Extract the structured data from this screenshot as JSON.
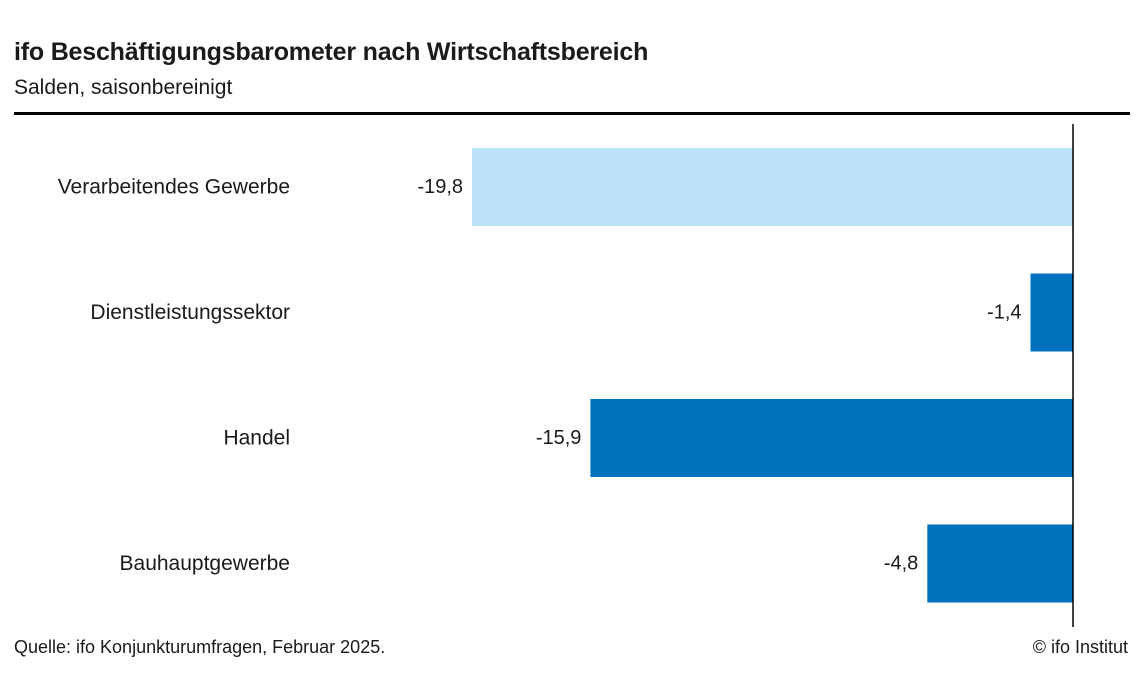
{
  "header": {
    "title": "ifo Beschäftigungsbarometer nach Wirtschaftsbereich",
    "subtitle": "Salden, saisonbereinigt"
  },
  "footer": {
    "source": "Quelle: ifo Konjunkturumfragen, Februar 2025.",
    "copyright": "© ifo Institut"
  },
  "chart_data": {
    "type": "bar",
    "orientation": "horizontal",
    "title": "ifo Beschäftigungsbarometer nach Wirtschaftsbereich",
    "subtitle": "Salden, saisonbereinigt",
    "categories": [
      "Verarbeitendes Gewerbe",
      "Dienstleistungssektor",
      "Handel",
      "Bauhauptgewerbe"
    ],
    "values": [
      -19.8,
      -1.4,
      -15.9,
      -4.8
    ],
    "value_labels": [
      "-19,8",
      "-1,4",
      "-15,9",
      "-4,8"
    ],
    "bar_colors": [
      "#bde3fb",
      "#0071bc",
      "#0071bc",
      "#0071bc"
    ],
    "xlim": [
      -24,
      0
    ],
    "grid": false,
    "legend": "none"
  }
}
